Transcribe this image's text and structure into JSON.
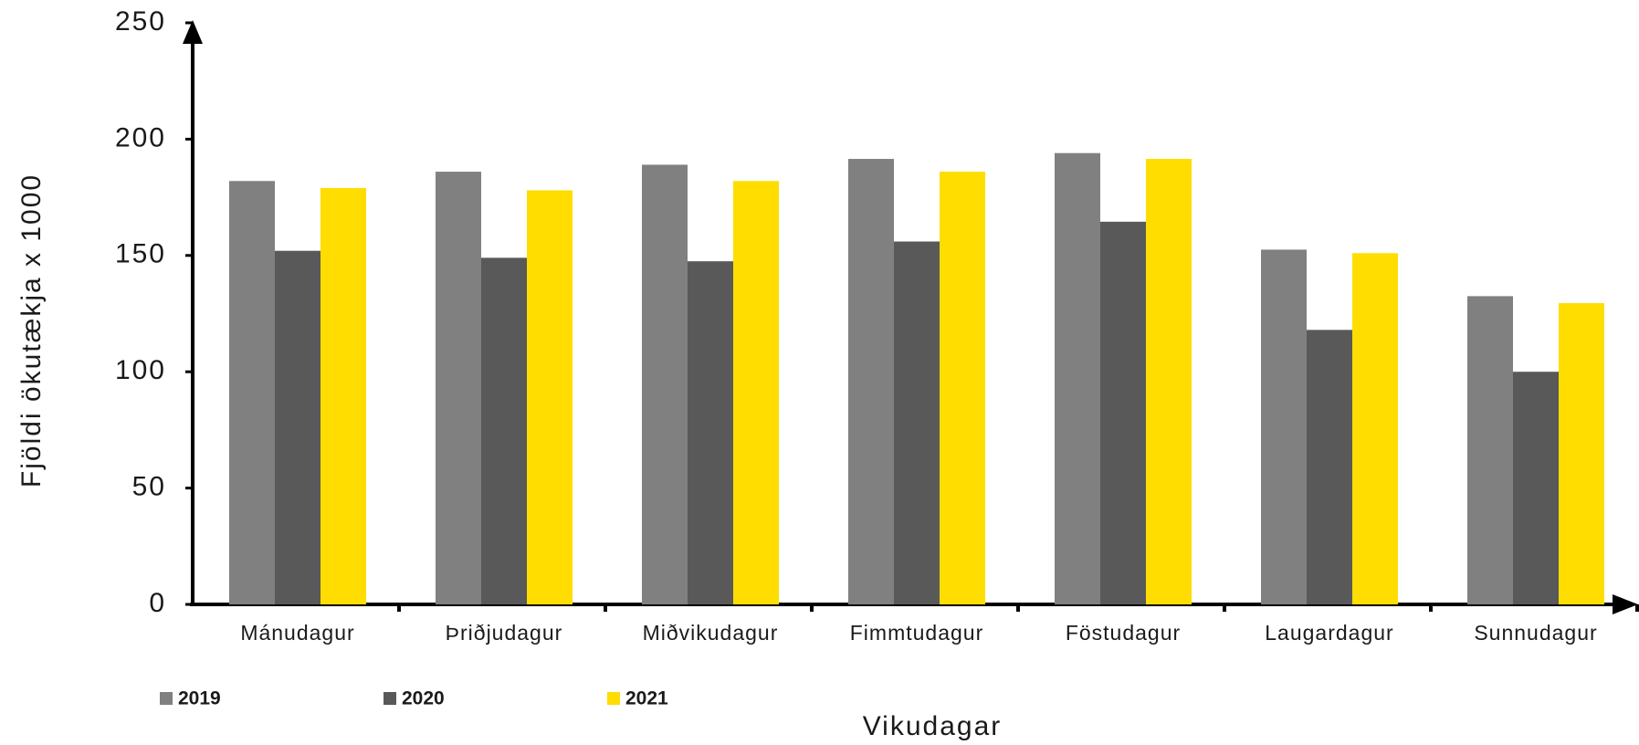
{
  "chart_data": {
    "type": "bar",
    "x_label": "Vikudagar",
    "y_label": "Fjöldi ökutækja x 1000",
    "categories": [
      "Mánudagur",
      "Þriðjudagur",
      "Miðvikudagur",
      "Fimmtudagur",
      "Föstudagur",
      "Laugardagur",
      "Sunnudagur"
    ],
    "series": [
      {
        "name": "2019",
        "color": "#808080",
        "values": [
          182,
          186,
          189,
          191.5,
          194,
          152.5,
          132.5
        ]
      },
      {
        "name": "2020",
        "color": "#595959",
        "values": [
          152,
          149,
          147.5,
          156,
          164.5,
          118,
          100
        ]
      },
      {
        "name": "2021",
        "color": "#ffdd00",
        "values": [
          179,
          178,
          182,
          186,
          191.5,
          151,
          129.5
        ]
      }
    ],
    "ylim": [
      0,
      250
    ],
    "yticks": [
      0,
      50,
      100,
      150,
      200,
      250
    ],
    "grid": false,
    "legend": "bottom-left"
  }
}
